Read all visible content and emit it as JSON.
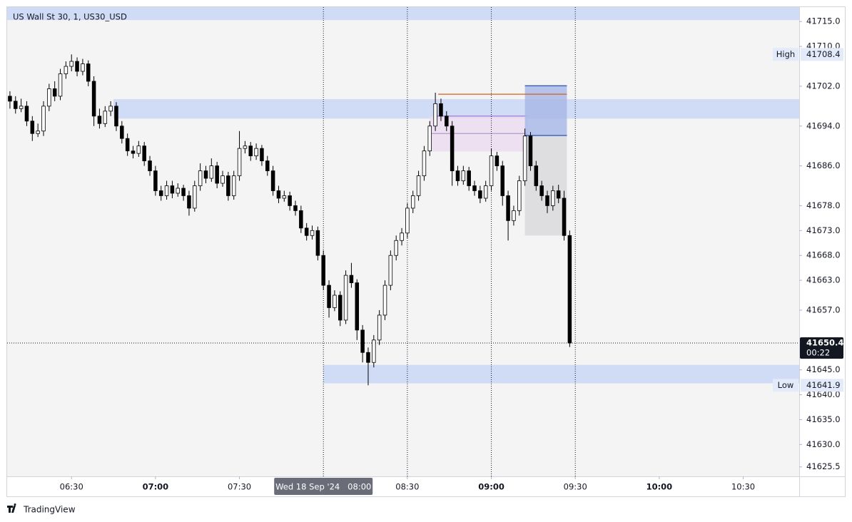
{
  "chart_data": {
    "type": "candlestick",
    "title": "US Wall St 30, 1, US30_USD",
    "footer": "TradingView",
    "x": [
      "06:08",
      "06:10",
      "06:12",
      "06:14",
      "06:16",
      "06:18",
      "06:20",
      "06:22",
      "06:24",
      "06:26",
      "06:28",
      "06:30",
      "06:32",
      "06:34",
      "06:36",
      "06:38",
      "06:40",
      "06:42",
      "06:44",
      "06:46",
      "06:48",
      "06:50",
      "06:52",
      "06:54",
      "06:56",
      "06:58",
      "07:00",
      "07:02",
      "07:04",
      "07:06",
      "07:08",
      "07:10",
      "07:12",
      "07:14",
      "07:16",
      "07:18",
      "07:20",
      "07:22",
      "07:24",
      "07:26",
      "07:28",
      "07:30",
      "07:32",
      "07:34",
      "07:36",
      "07:38",
      "07:40",
      "07:42",
      "07:44",
      "07:46",
      "07:48",
      "07:50",
      "07:52",
      "07:54",
      "07:56",
      "07:58",
      "08:00",
      "08:02",
      "08:04",
      "08:06",
      "08:08",
      "08:10",
      "08:12",
      "08:14",
      "08:16",
      "08:18",
      "08:20",
      "08:22",
      "08:24",
      "08:26",
      "08:28",
      "08:30",
      "08:32",
      "08:34",
      "08:36",
      "08:38",
      "08:40",
      "08:42",
      "08:44",
      "08:46",
      "08:48",
      "08:50",
      "08:52",
      "08:54",
      "08:56",
      "08:58",
      "09:00",
      "09:02",
      "09:04",
      "09:06",
      "09:08",
      "09:10",
      "09:12",
      "09:14",
      "09:16",
      "09:18",
      "09:20",
      "09:22",
      "09:24",
      "09:26",
      "09:28"
    ],
    "open": [
      41700,
      41699,
      41697.5,
      41698,
      41695,
      41692.5,
      41693,
      41698,
      41701.5,
      41700,
      41704.5,
      41706,
      41707,
      41705,
      41706.5,
      41703,
      41696,
      41694.5,
      41697,
      41698,
      41694,
      41691.5,
      41689,
      41688.5,
      41690,
      41687,
      41685,
      41681,
      41680,
      41682,
      41680.5,
      41681.5,
      41680,
      41677.5,
      41682,
      41685,
      41683.5,
      41686,
      41682.5,
      41684,
      41680,
      41684,
      41689.5,
      41690,
      41688,
      41689.5,
      41687,
      41685,
      41681,
      41679.5,
      41680,
      41678,
      41677,
      41673.5,
      41672,
      41673,
      41668,
      41662,
      41657.5,
      41660,
      41655,
      41664,
      41662.5,
      41653,
      41648.5,
      41646.5,
      41651,
      41656,
      41662,
      41668,
      41671,
      41672.5,
      41677.5,
      41680,
      41684,
      41689,
      41694,
      41698.5,
      41696,
      41694,
      41685,
      41683,
      41685,
      41682,
      41681,
      41679.5,
      41682,
      41688,
      41686,
      41680,
      41675,
      41677,
      41683,
      41692,
      41686,
      41682,
      41680,
      41678,
      41681,
      41679.5,
      41672
    ],
    "high": [
      41701,
      41700,
      41699.5,
      41699,
      41696,
      41694.5,
      41699,
      41702.5,
      41703,
      41705.5,
      41707,
      41708.4,
      41707.8,
      41707.5,
      41707.2,
      41704,
      41697.5,
      41698,
      41699,
      41698.8,
      41695,
      41692.5,
      41690,
      41691,
      41690.8,
      41688,
      41686,
      41682,
      41683,
      41683,
      41682.5,
      41682.2,
      41681,
      41683,
      41686.5,
      41686,
      41687.5,
      41686.8,
      41685,
      41684.8,
      41685,
      41693,
      41691,
      41690.8,
      41690.5,
      41690.2,
      41688,
      41686,
      41682,
      41681,
      41680.8,
      41679,
      41678,
      41674.5,
      41674,
      41673.8,
      41669,
      41663,
      41661,
      41660.8,
      41665,
      41666.5,
      41663.2,
      41654,
      41649.5,
      41652,
      41657,
      41663,
      41669,
      41672,
      41673.5,
      41678.5,
      41681,
      41685,
      41690,
      41695,
      41700.7,
      41699.5,
      41697,
      41695,
      41686,
      41686,
      41685.8,
      41683,
      41682,
      41683,
      41689.5,
      41688.8,
      41687,
      41681,
      41678,
      41684,
      41693.5,
      41692.8,
      41687,
      41683,
      41681,
      41682,
      41682.2,
      41681,
      41673
    ],
    "low": [
      41697.5,
      41696.5,
      41696.8,
      41694,
      41691,
      41691.8,
      41692,
      41697,
      41699,
      41699.2,
      41703.5,
      41705,
      41704,
      41704.2,
      41702,
      41694,
      41693.5,
      41693.8,
      41696,
      41693,
      41690.5,
      41688,
      41687.5,
      41687.8,
      41686,
      41684,
      41680,
      41679,
      41679.2,
      41679.5,
      41679.8,
      41679,
      41676,
      41676.8,
      41681,
      41682.5,
      41682.8,
      41681.5,
      41681.8,
      41679,
      41679.2,
      41683,
      41688.5,
      41687,
      41687.2,
      41686,
      41684,
      41680,
      41678.5,
      41678.8,
      41677,
      41676,
      41672.5,
      41671,
      41671.2,
      41667,
      41661,
      41655.5,
      41656.8,
      41653.8,
      41654.2,
      41661.5,
      41651,
      41646.5,
      41641.9,
      41645.5,
      41650,
      41655,
      41661,
      41667,
      41670,
      41671.5,
      41676.5,
      41679,
      41683,
      41688,
      41693,
      41695,
      41693,
      41682,
      41682,
      41682.2,
      41681,
      41680,
      41678.5,
      41678.8,
      41681,
      41685,
      41678,
      41671,
      41674,
      41676,
      41682,
      41685,
      41681,
      41679,
      41676.5,
      41677,
      41678.5,
      41671,
      41649.6
    ],
    "close": [
      41699,
      41697.5,
      41698,
      41695,
      41692.5,
      41693,
      41698,
      41701.5,
      41700,
      41704.5,
      41706,
      41707,
      41705,
      41706.5,
      41703,
      41696,
      41694.5,
      41697,
      41698,
      41694,
      41691.5,
      41689,
      41688.5,
      41690,
      41687,
      41685,
      41681,
      41680,
      41682,
      41680.5,
      41681.5,
      41680,
      41677.5,
      41682,
      41685,
      41683.5,
      41686,
      41682.5,
      41684,
      41680,
      41684,
      41689.5,
      41690,
      41688,
      41689.5,
      41687,
      41685,
      41681,
      41679.5,
      41680,
      41678,
      41677,
      41673.5,
      41672,
      41673,
      41668,
      41662,
      41657.5,
      41660,
      41655,
      41664,
      41662.5,
      41653,
      41648.5,
      41646.5,
      41651,
      41656,
      41662,
      41668,
      41671,
      41672.5,
      41677.5,
      41680,
      41684,
      41689,
      41694,
      41698.5,
      41696,
      41694,
      41685,
      41683,
      41685,
      41682,
      41681,
      41679.5,
      41682,
      41688,
      41686,
      41680,
      41675,
      41677,
      41683,
      41692,
      41686,
      41682,
      41680,
      41678,
      41681,
      41679.5,
      41672,
      41650.4
    ],
    "up_color": "#ffffff",
    "down_color": "#000000",
    "wick_color": "#000000",
    "xlim": [
      "06:07",
      "10:50"
    ],
    "ylim": [
      41623.6,
      41717.9
    ],
    "xticks": [
      "06:30",
      "07:00",
      "07:30",
      "08:30",
      "09:00",
      "09:30",
      "10:00",
      "10:30"
    ],
    "yticks": [
      {
        "value": 41715,
        "label": "41715.0"
      },
      {
        "value": 41710,
        "label": "41710.0"
      },
      {
        "value": 41702,
        "label": "41702.0"
      },
      {
        "value": 41694,
        "label": "41694.0"
      },
      {
        "value": 41686,
        "label": "41686.0"
      },
      {
        "value": 41678,
        "label": "41678.0"
      },
      {
        "value": 41673,
        "label": "41673.0"
      },
      {
        "value": 41668,
        "label": "41668.0"
      },
      {
        "value": 41663,
        "label": "41663.0"
      },
      {
        "value": 41657,
        "label": "41657.0"
      },
      {
        "value": 41645,
        "label": "41645.0"
      },
      {
        "value": 41640,
        "label": "41640.0"
      },
      {
        "value": 41635,
        "label": "41635.0"
      },
      {
        "value": 41630,
        "label": "41630.0"
      },
      {
        "value": 41625.5,
        "label": "41625.5"
      }
    ],
    "vlines": [
      "08:00",
      "08:30",
      "09:00",
      "09:30"
    ],
    "crosshair": {
      "x": "08:00",
      "label": "Wed 18 Sep '24   08:00"
    },
    "drawings": [
      {
        "type": "rect",
        "x": [
          "06:07",
          "10:50"
        ],
        "y": [
          41715.3,
          41717.9
        ],
        "color": "#c9d6f6"
      },
      {
        "type": "rect",
        "x": [
          "06:45",
          "10:50"
        ],
        "y": [
          41695.5,
          41699.4
        ],
        "color": "#c9d6f6"
      },
      {
        "type": "rect",
        "x": [
          "08:00",
          "10:50"
        ],
        "y": [
          41642.3,
          41646
        ],
        "color": "#c9d6f6"
      },
      {
        "type": "rect",
        "x": [
          "08:38",
          "09:13"
        ],
        "y": [
          41688.9,
          41696
        ],
        "color": "#eadcf0"
      },
      {
        "type": "line",
        "x": [
          "08:38",
          "09:13"
        ],
        "y": [
          41692.5,
          41692.5
        ],
        "color": "#b79ac9"
      },
      {
        "type": "line",
        "x": [
          "08:40",
          "09:13"
        ],
        "y": [
          41696,
          41696
        ],
        "color": "#9c6fd6"
      },
      {
        "type": "rect",
        "x": [
          "09:12",
          "09:27"
        ],
        "y": [
          41692.1,
          41702.1
        ],
        "color": "#a9b9e6"
      },
      {
        "type": "rect",
        "x": [
          "09:12",
          "09:27"
        ],
        "y": [
          41672,
          41692.1
        ],
        "color": "#d9d9dd"
      },
      {
        "type": "line",
        "x": [
          "08:41",
          "09:27"
        ],
        "y": [
          41700.4,
          41700.4
        ],
        "color": "#d2611c"
      },
      {
        "type": "line",
        "x": [
          "09:12",
          "09:27"
        ],
        "y": [
          41692.1,
          41692.1
        ],
        "color": "#2a4fb5"
      },
      {
        "type": "line",
        "x": [
          "09:12",
          "09:27"
        ],
        "y": [
          41702.1,
          41702.1
        ],
        "color": "#2a4fb5"
      }
    ],
    "high_marker": {
      "label": "High",
      "value": 41708.4,
      "value_label": "41708.4"
    },
    "low_marker": {
      "label": "Low",
      "value": 41641.9,
      "value_label": "41641.9"
    },
    "last_price": {
      "value": 41650.4,
      "value_label": "41650.4",
      "countdown": "00:22"
    }
  }
}
